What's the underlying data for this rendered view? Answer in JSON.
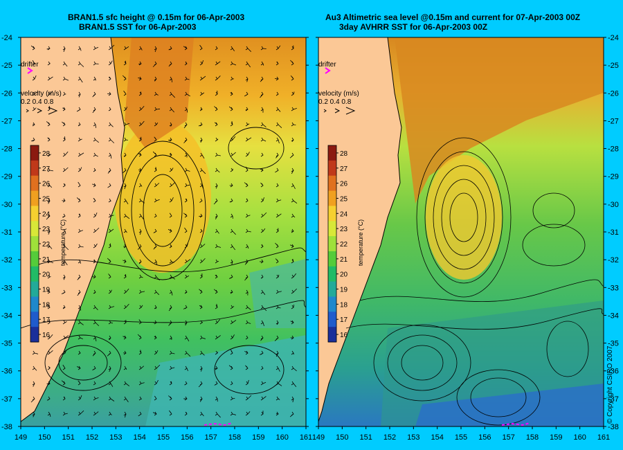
{
  "left_panel": {
    "title_line1": "BRAN1.5 sfc height @ 0.15m for 06-Apr-2003",
    "title_line2": "BRAN1.5 SST for 06-Apr-2003"
  },
  "right_panel": {
    "title_line1": "Au3 Altimetric sea level  @0.15m and current for 07-Apr-2003 00Z",
    "title_line2": "3day AVHRR SST for 06-Apr-2003 00Z"
  },
  "legend": {
    "drifter_label": "drifter",
    "velocity_label": "velocity (m/s)",
    "velocity_values": "0.2 0.4 0.8",
    "colorbar_label": "temperature (°C)",
    "colorbar_ticks": [
      "28",
      "27",
      "26",
      "25",
      "24",
      "23",
      "22",
      "21",
      "20",
      "19",
      "18",
      "17",
      "16"
    ],
    "colorbar_colors": [
      "#8b1a10",
      "#c0391a",
      "#e0701f",
      "#f0a020",
      "#f6d030",
      "#d8e838",
      "#9fe03a",
      "#55cc3a",
      "#22bb66",
      "#22aa99",
      "#1f88cc",
      "#1f5bcc",
      "#1a2f9a"
    ]
  },
  "axes": {
    "y_ticks": [
      "-24",
      "-25",
      "-26",
      "-27",
      "-28",
      "-29",
      "-30",
      "-31",
      "-32",
      "-33",
      "-34",
      "-35",
      "-36",
      "-37",
      "-38"
    ],
    "x_ticks": [
      "149",
      "150",
      "151",
      "152",
      "153",
      "154",
      "155",
      "156",
      "157",
      "158",
      "159",
      "160",
      "161"
    ]
  },
  "copyright": "© Copyright CSIRO 2007"
}
